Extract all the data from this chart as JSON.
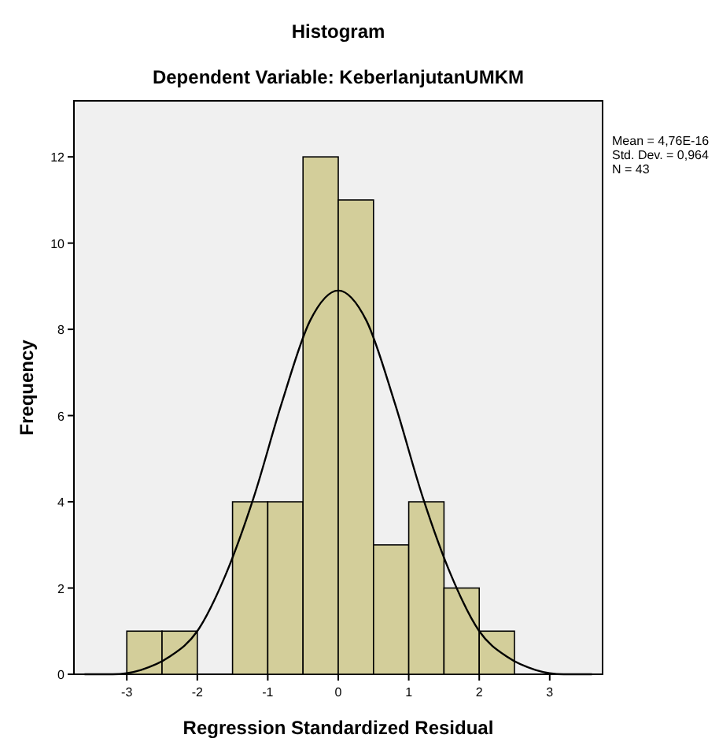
{
  "chart_data": {
    "type": "histogram",
    "title": "Histogram",
    "subtitle": "Dependent Variable: KeberlanjutanUMKM",
    "xlabel": "Regression Standardized Residual",
    "ylabel": "Frequency",
    "bins": [
      -3,
      -2.5,
      -2,
      -1.5,
      -1,
      -0.5,
      0,
      0.5,
      1,
      1.5,
      2,
      2.5
    ],
    "values": [
      1,
      1,
      0,
      4,
      4,
      12,
      11,
      3,
      4,
      2,
      1
    ],
    "color": "#d3ce9a",
    "series": [
      {
        "type": "line",
        "color": "#000000",
        "x": [
          -3.6,
          -3.2,
          -2.8,
          -2.4,
          -2,
          -1.6,
          -1.2,
          -0.8,
          -0.4,
          0,
          0.4,
          0.8,
          1.2,
          1.6,
          2,
          2.4,
          2.8,
          3.2,
          3.6
        ],
        "values": [
          0,
          0,
          0.1,
          0.4,
          1,
          2.3,
          4.1,
          6.3,
          8.2,
          8.9,
          8.2,
          6.3,
          4.1,
          2.3,
          1,
          0.4,
          0.1,
          0,
          0
        ]
      }
    ],
    "xlim": [
      -3.75,
      3.75
    ],
    "xticks": [
      -3,
      -2,
      -1,
      0,
      1,
      2,
      3
    ],
    "ylim": [
      0,
      13.3
    ],
    "yticks": [
      0,
      2,
      4,
      6,
      8,
      10,
      12
    ],
    "grid": false,
    "marker": "none",
    "line_style": "solid",
    "annotations": [
      "Mean = 4,76E-16",
      "Std. Dev. = 0,964",
      "N = 43"
    ]
  }
}
